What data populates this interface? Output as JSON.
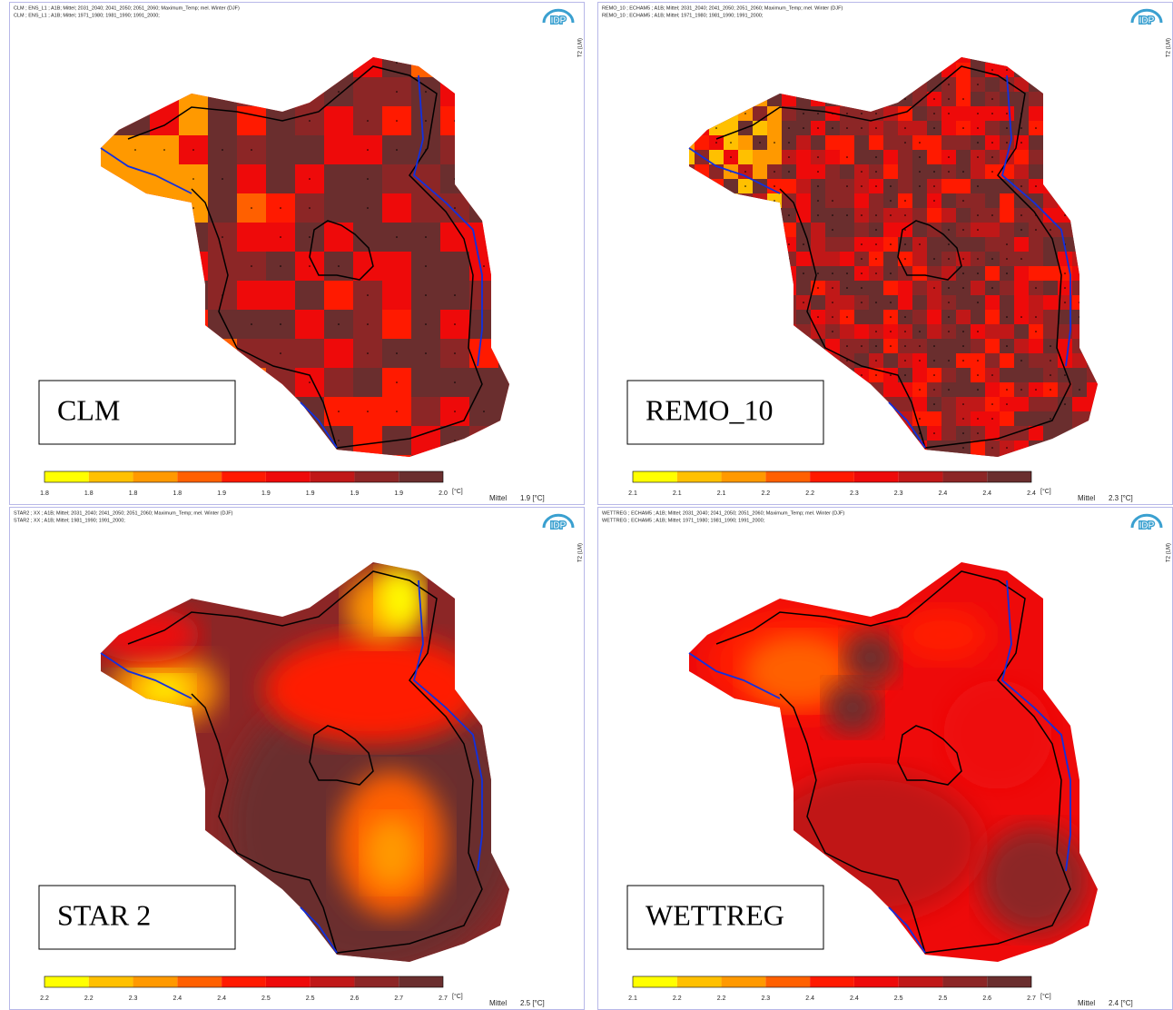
{
  "panels": [
    {
      "header": [
        "CLM ; ENS_L1 ; A1B; Mittel; 2031_2040; 2041_2050; 2051_2060; Maximum_Temp; mel. Winter (DJF)",
        "CLM ; ENS_L1 ; A1B; Mittel; 1971_1980; 1981_1990; 1991_2000;"
      ],
      "label": "CLM",
      "logo": "IDP",
      "side_label": "T2 (LM)",
      "colorbar": {
        "ticks": [
          "1.8",
          "1.8",
          "1.8",
          "1.8",
          "1.9",
          "1.9",
          "1.9",
          "1.9",
          "1.9",
          "2.0"
        ],
        "unit": "[°C]"
      },
      "mean_label": "Mittel",
      "mean": "1.9 [°C]"
    },
    {
      "header": [
        "REMO_10 ; ECHAM5 ; A1B; Mittel; 2031_2040; 2041_2050; 2051_2060; Maximum_Temp; mel. Winter (DJF)",
        "REMO_10 ; ECHAM5 ; A1B; Mittel; 1971_1980; 1981_1990; 1991_2000;"
      ],
      "label": "REMO_10",
      "logo": "IDP",
      "side_label": "T2 (LM)",
      "colorbar": {
        "ticks": [
          "2.1",
          "2.1",
          "2.1",
          "2.2",
          "2.2",
          "2.3",
          "2.3",
          "2.4",
          "2.4",
          "2.4"
        ],
        "unit": "[°C]"
      },
      "mean_label": "Mittel",
      "mean": "2.3 [°C]"
    },
    {
      "header": [
        "STAR2 ; XX ; A1B; Mittel; 2031_2040; 2041_2050; 2051_2060; Maximum_Temp; mel. Winter (DJF)",
        "STAR2 ; XX ; A1B; Mittel; 1981_1990; 1991_2000;"
      ],
      "label": "STAR 2",
      "logo": "IDP",
      "side_label": "T2 (LM)",
      "colorbar": {
        "ticks": [
          "2.2",
          "2.2",
          "2.3",
          "2.4",
          "2.4",
          "2.5",
          "2.5",
          "2.6",
          "2.7",
          "2.7"
        ],
        "unit": "[°C]"
      },
      "mean_label": "Mittel",
      "mean": "2.5 [°C]"
    },
    {
      "header": [
        "WETTREG ; ECHAM5 ; A1B; Mittel; 2031_2040; 2041_2050; 2051_2060; Maximum_Temp; mel. Winter (DJF)",
        "WETTREG ; ECHAM5 ; A1B; Mittel; 1971_1980; 1981_1990; 1991_2000;"
      ],
      "label": "WETTREG",
      "logo": "IDP",
      "side_label": "T2 (LM)",
      "colorbar": {
        "ticks": [
          "2.1",
          "2.2",
          "2.2",
          "2.3",
          "2.4",
          "2.4",
          "2.5",
          "2.5",
          "2.6",
          "2.7"
        ],
        "unit": "[°C]"
      },
      "mean_label": "Mittel",
      "mean": "2.4 [°C]"
    }
  ]
}
